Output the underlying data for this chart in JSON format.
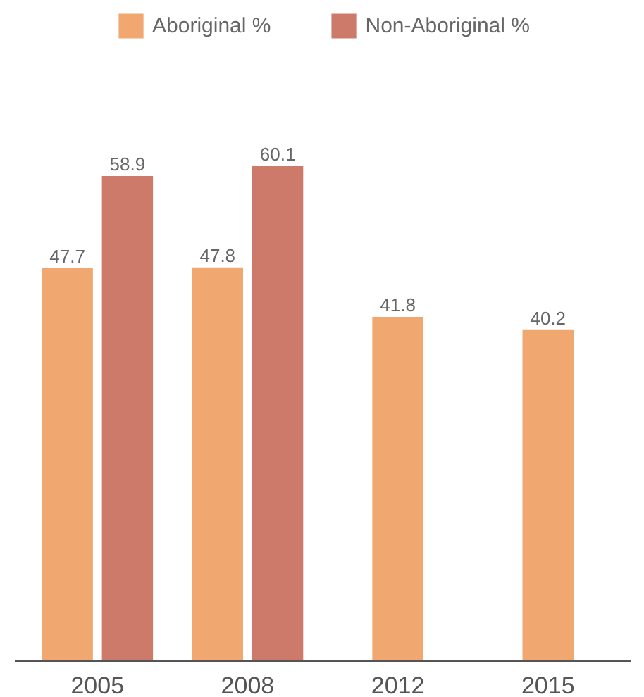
{
  "chart_data": {
    "type": "bar",
    "categories": [
      "2005",
      "2008",
      "2012",
      "2015"
    ],
    "series": [
      {
        "name": "Aboriginal %",
        "color": "#f0a870",
        "values": [
          47.7,
          47.8,
          41.8,
          40.2
        ]
      },
      {
        "name": "Non-Aboriginal %",
        "color": "#cd7a6a",
        "values": [
          58.9,
          60.1,
          null,
          null
        ]
      }
    ],
    "data_labels": true,
    "legend": "top"
  }
}
